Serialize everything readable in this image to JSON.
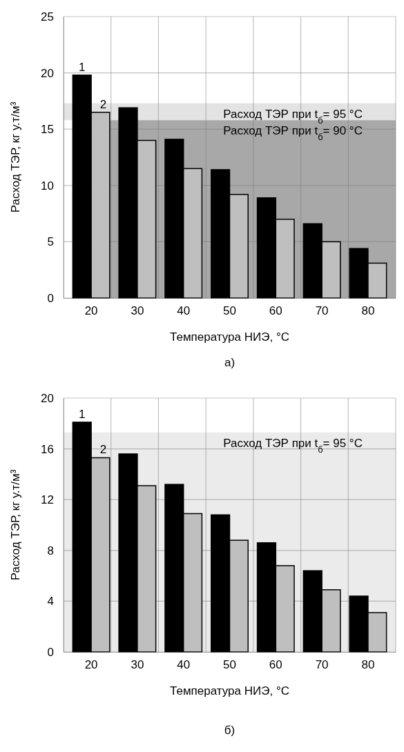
{
  "chart_data": [
    {
      "type": "bar",
      "xlabel": "Температура НИЭ, °C",
      "ylabel": "Расход ТЭР, кг у.т/м³",
      "categories": [
        "20",
        "30",
        "40",
        "50",
        "60",
        "70",
        "80"
      ],
      "series": [
        {
          "name": "1",
          "color": "#000000",
          "values": [
            19.8,
            16.9,
            14.1,
            11.4,
            8.9,
            6.6,
            4.4
          ]
        },
        {
          "name": "2",
          "color": "#bfbfbf",
          "values": [
            16.5,
            14.0,
            11.5,
            9.2,
            7.0,
            5.0,
            3.1
          ]
        }
      ],
      "ylim": [
        0,
        25
      ],
      "yticks": [
        0,
        5,
        10,
        15,
        20,
        25
      ],
      "grid": true,
      "bands": [
        {
          "axis": "y",
          "from": 0,
          "to": 15.8,
          "label": "Расход ТЭР при t$_{б}$= 90 °C",
          "color": "#a8a8a8"
        },
        {
          "axis": "y",
          "from": 15.8,
          "to": 17.3,
          "label": "Расход ТЭР при t$_{б}$= 95 °C",
          "color": "#e3e3e3"
        }
      ],
      "annotations": [
        "а)"
      ]
    },
    {
      "type": "bar",
      "xlabel": "Температура НИЭ, °C",
      "ylabel": "Расход ТЭР, кг у.т/м³",
      "categories": [
        "20",
        "30",
        "40",
        "50",
        "60",
        "70",
        "80"
      ],
      "series": [
        {
          "name": "1",
          "color": "#000000",
          "values": [
            18.1,
            15.6,
            13.2,
            10.8,
            8.6,
            6.4,
            4.4
          ]
        },
        {
          "name": "2",
          "color": "#bfbfbf",
          "values": [
            15.3,
            13.1,
            10.9,
            8.8,
            6.8,
            4.9,
            3.1
          ]
        }
      ],
      "ylim": [
        0,
        20
      ],
      "yticks": [
        0,
        4,
        8,
        12,
        16,
        20
      ],
      "grid": true,
      "bands": [
        {
          "axis": "y",
          "from": 0,
          "to": 17.3,
          "label": "Расход ТЭР при t$_{б}$= 95 °C",
          "color": "#ebebeb"
        }
      ],
      "annotations": [
        "б)"
      ]
    }
  ]
}
